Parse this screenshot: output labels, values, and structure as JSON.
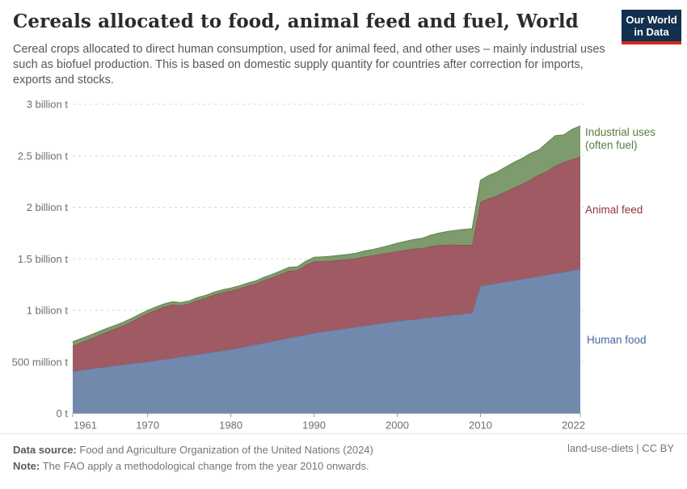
{
  "header": {
    "title": "Cereals allocated to food, animal feed and fuel, World",
    "subtitle": "Cereal crops allocated to direct human consumption, used for animal feed, and other uses – mainly industrial uses such as biofuel production. This is based on domestic supply quantity for countries after correction for imports, exports and stocks.",
    "logo": {
      "line1": "Our World",
      "line2": "in Data",
      "bg_color": "#12304f",
      "accent_color": "#d0281c"
    }
  },
  "chart_data": {
    "type": "area",
    "stacked": true,
    "title": "Cereals allocated to food, animal feed and fuel, World",
    "values_unit": "million tonnes",
    "ylim": [
      0,
      3000
    ],
    "grid": "dashed horizontal",
    "legend_position": "right of plot, colored series labels",
    "x": [
      1961,
      1962,
      1963,
      1964,
      1965,
      1966,
      1967,
      1968,
      1969,
      1970,
      1971,
      1972,
      1973,
      1974,
      1975,
      1976,
      1977,
      1978,
      1979,
      1980,
      1981,
      1982,
      1983,
      1984,
      1985,
      1986,
      1987,
      1988,
      1989,
      1990,
      1991,
      1992,
      1993,
      1994,
      1995,
      1996,
      1997,
      1998,
      1999,
      2000,
      2001,
      2002,
      2003,
      2004,
      2005,
      2006,
      2007,
      2008,
      2009,
      2010,
      2011,
      2012,
      2013,
      2014,
      2015,
      2016,
      2017,
      2018,
      2019,
      2020,
      2021,
      2022
    ],
    "series": [
      {
        "name": "Human food",
        "fill_color": "#7289ae",
        "edge_color": "#5d7aa3",
        "label_color": "#4668a2",
        "values": [
          408,
          419,
          430,
          441,
          452,
          462,
          472,
          482,
          491,
          500,
          512,
          524,
          536,
          548,
          560,
          572,
          584,
          596,
          608,
          620,
          636,
          652,
          668,
          684,
          700,
          716,
          732,
          748,
          764,
          780,
          792,
          803,
          815,
          826,
          838,
          849,
          861,
          872,
          884,
          895,
          904,
          913,
          922,
          931,
          940,
          949,
          958,
          967,
          975,
          1235,
          1249,
          1263,
          1276,
          1290,
          1304,
          1317,
          1331,
          1345,
          1359,
          1372,
          1386,
          1400
        ]
      },
      {
        "name": "Animal feed",
        "fill_color": "#a05a64",
        "edge_color": "#8c4451",
        "label_color": "#8e3440",
        "values": [
          250,
          270,
          290,
          312,
          335,
          355,
          378,
          405,
          440,
          470,
          492,
          510,
          520,
          500,
          505,
          525,
          535,
          555,
          565,
          570,
          575,
          585,
          590,
          608,
          620,
          635,
          652,
          640,
          675,
          695,
          685,
          678,
          672,
          668,
          665,
          672,
          670,
          673,
          675,
          678,
          682,
          685,
          680,
          690,
          692,
          688,
          678,
          668,
          660,
          817,
          835,
          850,
          875,
          900,
          920,
          950,
          985,
          1005,
          1045,
          1065,
          1080,
          1090
        ]
      },
      {
        "name": "Industrial uses (often fuel)",
        "fill_color": "#7d9b6d",
        "edge_color": "#668a55",
        "label_color": "#567d3e",
        "values": [
          38,
          37,
          36,
          36,
          35,
          34,
          33,
          32,
          30,
          30,
          29,
          29,
          28,
          28,
          27,
          27,
          27,
          26,
          26,
          26,
          27,
          27,
          28,
          29,
          30,
          32,
          34,
          35,
          37,
          40,
          42,
          44,
          46,
          48,
          50,
          54,
          58,
          64,
          70,
          78,
          84,
          90,
          98,
          108,
          118,
          128,
          140,
          150,
          157,
          210,
          225,
          230,
          238,
          245,
          250,
          255,
          240,
          275,
          292,
          265,
          290,
          300
        ]
      }
    ],
    "y_ticks": [
      {
        "value": 0,
        "label": "0 t"
      },
      {
        "value": 500,
        "label": "500 million t"
      },
      {
        "value": 1000,
        "label": "1 billion t"
      },
      {
        "value": 1500,
        "label": "1.5 billion t"
      },
      {
        "value": 2000,
        "label": "2 billion t"
      },
      {
        "value": 2500,
        "label": "2.5 billion t"
      },
      {
        "value": 3000,
        "label": "3 billion t"
      }
    ],
    "x_ticks": [
      1961,
      1970,
      1980,
      1990,
      2000,
      2010,
      2022
    ],
    "annotation": "Visible step change between 2009 and 2010 in all series (FAO methodological change)"
  },
  "footer": {
    "datasource_label": "Data source:",
    "datasource": "Food and Agriculture Organization of the United Nations (2024)",
    "note_label": "Note:",
    "note": "The FAO apply a methodological change from the year 2010 onwards.",
    "attribution": "land-use-diets | CC BY"
  }
}
